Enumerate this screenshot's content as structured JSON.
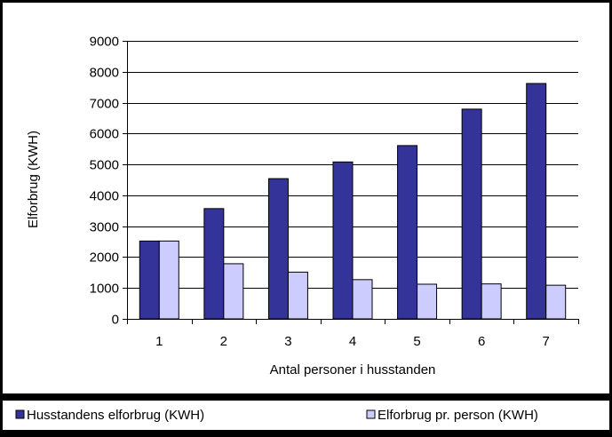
{
  "chart_data": {
    "type": "bar",
    "xlabel": "Antal personer i husstanden",
    "ylabel": "Elforbrug (KWH)",
    "categories": [
      "1",
      "2",
      "3",
      "4",
      "5",
      "6",
      "7"
    ],
    "ylim": [
      0,
      9000
    ],
    "yticks": [
      0,
      1000,
      2000,
      3000,
      4000,
      5000,
      6000,
      7000,
      8000,
      9000
    ],
    "grid": true,
    "legend_position": "bottom",
    "series": [
      {
        "name": "Husstandens elforbrug (KWH)",
        "color": "#333399",
        "values": [
          2520,
          3570,
          4540,
          5080,
          5610,
          6790,
          7620
        ]
      },
      {
        "name": "Elforbrug pr. person (KWH)",
        "color": "#CCCCFF",
        "values": [
          2520,
          1785,
          1513,
          1270,
          1122,
          1132,
          1089
        ]
      }
    ]
  }
}
